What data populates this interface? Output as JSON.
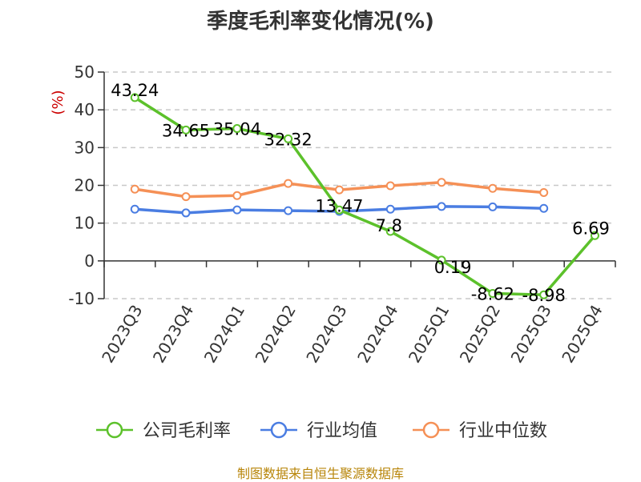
{
  "chart_data": {
    "type": "line",
    "title": "季度毛利率变化情况(%)",
    "ylabel": "(%)",
    "ylim": [
      -10,
      50
    ],
    "yticks": [
      -10,
      0,
      10,
      20,
      30,
      40,
      50
    ],
    "categories": [
      "2023Q3",
      "2023Q4",
      "2024Q1",
      "2024Q2",
      "2024Q3",
      "2024Q4",
      "2025Q1",
      "2025Q2",
      "2025Q3",
      "2025Q4"
    ],
    "grid": true,
    "legend_position": "bottom",
    "series": [
      {
        "name": "公司毛利率",
        "color": "#5cc12b",
        "values": [
          43.24,
          34.65,
          35.04,
          32.32,
          13.47,
          7.8,
          0.19,
          -8.62,
          -8.98,
          6.69
        ],
        "labels": [
          "43.24",
          "34.65",
          "35.04",
          "32.32",
          "13.47",
          "7.8",
          "0.19",
          "-8.62",
          "-8.98",
          "6.69"
        ]
      },
      {
        "name": "行业均值",
        "color": "#4a7de2",
        "values": [
          13.7,
          12.7,
          13.5,
          13.3,
          13.1,
          13.7,
          14.4,
          14.3,
          13.9,
          null
        ]
      },
      {
        "name": "行业中位数",
        "color": "#f59056",
        "values": [
          19.0,
          17.0,
          17.3,
          20.5,
          18.8,
          19.9,
          20.8,
          19.2,
          18.1,
          null
        ]
      }
    ],
    "source": "制图数据来自恒生聚源数据库"
  }
}
